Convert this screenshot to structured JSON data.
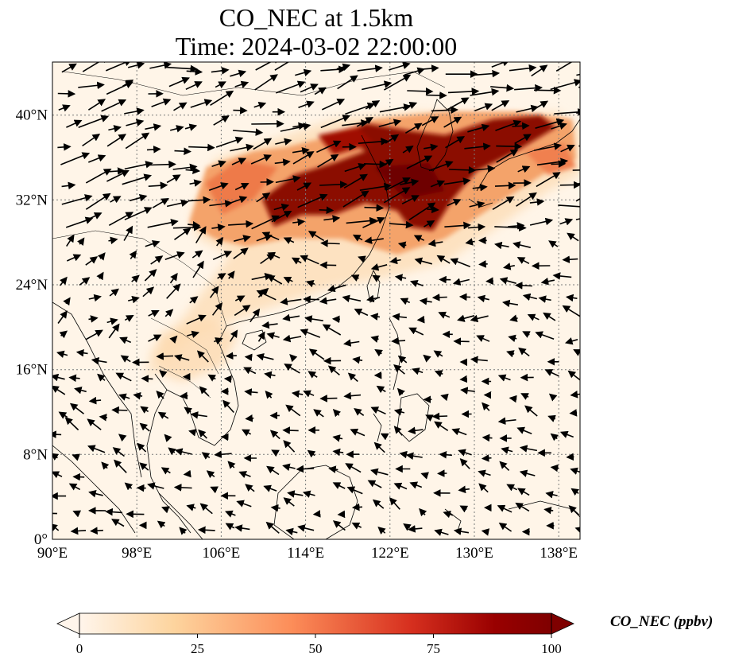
{
  "title": {
    "line1": "CO_NEC at 1.5km",
    "line2": "Time: 2024-03-02 22:00:00"
  },
  "map": {
    "lon_range": [
      90,
      140
    ],
    "lat_range": [
      0,
      45
    ],
    "lon_ticks": [
      "90°E",
      "98°E",
      "106°E",
      "114°E",
      "122°E",
      "130°E",
      "138°E"
    ],
    "lat_ticks": [
      "0°",
      "8°N",
      "16°N",
      "24°N",
      "32°N",
      "40°N"
    ],
    "gridlines": "dotted",
    "background_color": "#fff5e8",
    "plume_color": "#7f0000",
    "wind_vector_color": "#000000"
  },
  "colorbar": {
    "label": "CO_NEC (ppbv)",
    "ticks": [
      "0",
      "25",
      "50",
      "75",
      "100"
    ],
    "min": 0,
    "max": 100,
    "extend": "both",
    "colormap": [
      "#fff5eb",
      "#fdd49e",
      "#fc8d59",
      "#d7301f",
      "#990000",
      "#7f0000"
    ]
  }
}
